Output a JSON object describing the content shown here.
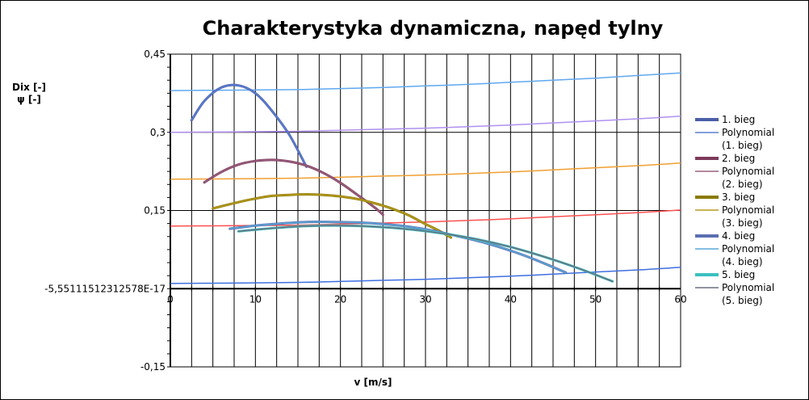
{
  "chart_data": {
    "type": "line",
    "title": "Charakterystyka dynamiczna, napęd tylny",
    "xlabel": "v [m/s]",
    "ylabel_lines": [
      "Dix [-]",
      "ψ [-]"
    ],
    "xlim": [
      0,
      60
    ],
    "ylim": [
      -0.15,
      0.45
    ],
    "x_ticks": [
      0,
      10,
      20,
      30,
      40,
      50,
      60
    ],
    "x_tick_labels": [
      "0",
      "10",
      "20",
      "30",
      "40",
      "50",
      "60"
    ],
    "y_ticks": [
      -0.15,
      0,
      0.15,
      0.3,
      0.45
    ],
    "y_tick_labels": [
      "-0,15",
      "-5,55111512312578E-17",
      "0,15",
      "0,3",
      "0,45"
    ],
    "grid": true,
    "legend_position": "right",
    "series": [
      {
        "name": "1. bieg",
        "color": "#4a5fa8",
        "width": 3,
        "x": [
          2.5,
          4,
          6,
          8,
          10,
          12,
          14,
          16
        ],
        "y": [
          0.323,
          0.36,
          0.386,
          0.39,
          0.375,
          0.34,
          0.295,
          0.234
        ]
      },
      {
        "name": "Polynomial (1. bieg)",
        "color": "#5b7fd6",
        "width": 1.5,
        "trend": true,
        "x": [
          2.5,
          4,
          6,
          8,
          10,
          12,
          14,
          16
        ],
        "y": [
          0.323,
          0.36,
          0.386,
          0.39,
          0.375,
          0.34,
          0.295,
          0.234
        ]
      },
      {
        "name": "2. bieg",
        "color": "#7e3a5a",
        "width": 3,
        "x": [
          4,
          6,
          8,
          10,
          12,
          14,
          16,
          18,
          20,
          22,
          24,
          25
        ],
        "y": [
          0.204,
          0.224,
          0.238,
          0.245,
          0.247,
          0.244,
          0.236,
          0.222,
          0.203,
          0.18,
          0.156,
          0.142
        ]
      },
      {
        "name": "Polynomial (2. bieg)",
        "color": "#9a6080",
        "width": 1.5,
        "trend": true,
        "x": [
          4,
          6,
          8,
          10,
          12,
          14,
          16,
          18,
          20,
          22,
          24,
          25
        ],
        "y": [
          0.204,
          0.224,
          0.238,
          0.245,
          0.247,
          0.244,
          0.236,
          0.222,
          0.203,
          0.18,
          0.156,
          0.142
        ]
      },
      {
        "name": "3. bieg",
        "color": "#8a7a00",
        "width": 3,
        "x": [
          5,
          8,
          10,
          12,
          14,
          16,
          18,
          20,
          22,
          24,
          26,
          28,
          30,
          31.5,
          33
        ],
        "y": [
          0.154,
          0.166,
          0.173,
          0.178,
          0.18,
          0.181,
          0.18,
          0.177,
          0.172,
          0.164,
          0.154,
          0.141,
          0.124,
          0.112,
          0.098
        ]
      },
      {
        "name": "Polynomial (3. bieg)",
        "color": "#b89a20",
        "width": 1.5,
        "trend": true,
        "x": [
          5,
          8,
          10,
          12,
          14,
          16,
          18,
          20,
          22,
          24,
          26,
          28,
          30,
          31.5,
          33
        ],
        "y": [
          0.154,
          0.166,
          0.173,
          0.178,
          0.18,
          0.181,
          0.18,
          0.177,
          0.172,
          0.164,
          0.154,
          0.141,
          0.124,
          0.112,
          0.098
        ]
      },
      {
        "name": "4. bieg",
        "color": "#5b6fb0",
        "width": 3,
        "x": [
          7,
          10,
          13,
          16,
          19,
          22,
          25,
          28,
          31,
          34,
          37,
          40,
          43,
          46.5
        ],
        "y": [
          0.115,
          0.121,
          0.125,
          0.128,
          0.128,
          0.127,
          0.124,
          0.119,
          0.111,
          0.1,
          0.088,
          0.073,
          0.055,
          0.031
        ]
      },
      {
        "name": "Polynomial (4. bieg)",
        "color": "#5aa8d8",
        "width": 1.5,
        "trend": true,
        "x": [
          7,
          10,
          13,
          16,
          19,
          22,
          25,
          28,
          31,
          34,
          37,
          40,
          43,
          46.5
        ],
        "y": [
          0.115,
          0.121,
          0.125,
          0.128,
          0.128,
          0.127,
          0.124,
          0.119,
          0.111,
          0.1,
          0.088,
          0.073,
          0.055,
          0.031
        ]
      },
      {
        "name": "5. bieg",
        "color": "#3cc0c0",
        "width": 3,
        "x": [
          8,
          12,
          16,
          20,
          24,
          28,
          32,
          36,
          40,
          44,
          48,
          52
        ],
        "y": [
          0.11,
          0.116,
          0.12,
          0.121,
          0.119,
          0.114,
          0.106,
          0.095,
          0.08,
          0.061,
          0.039,
          0.014
        ]
      },
      {
        "name": "Polynomial (5. bieg)",
        "color": "#6a6f80",
        "width": 1.5,
        "trend": true,
        "x": [
          8,
          12,
          16,
          20,
          24,
          28,
          32,
          36,
          40,
          44,
          48,
          52
        ],
        "y": [
          0.11,
          0.116,
          0.12,
          0.121,
          0.119,
          0.114,
          0.106,
          0.095,
          0.08,
          0.061,
          0.039,
          0.014
        ]
      }
    ],
    "resistance_lines": [
      {
        "color": "#3f6fe0",
        "x": [
          0,
          8,
          15,
          20,
          25,
          30,
          35,
          40,
          45,
          50,
          55,
          60
        ],
        "y": [
          0.01,
          0.011,
          0.012,
          0.014,
          0.016,
          0.018,
          0.021,
          0.024,
          0.028,
          0.032,
          0.036,
          0.041
        ]
      },
      {
        "color": "#ff5050",
        "x": [
          0,
          8,
          15,
          20,
          25,
          30,
          35,
          40,
          45,
          50,
          55,
          60
        ],
        "y": [
          0.12,
          0.121,
          0.122,
          0.124,
          0.126,
          0.128,
          0.131,
          0.134,
          0.138,
          0.142,
          0.146,
          0.151
        ]
      },
      {
        "color": "#f0a030",
        "x": [
          0,
          8,
          15,
          20,
          25,
          30,
          35,
          40,
          45,
          50,
          55,
          60
        ],
        "y": [
          0.21,
          0.211,
          0.212,
          0.214,
          0.216,
          0.218,
          0.221,
          0.224,
          0.228,
          0.232,
          0.236,
          0.241
        ]
      },
      {
        "color": "#b090f0",
        "x": [
          0,
          8,
          15,
          20,
          25,
          30,
          35,
          40,
          45,
          50,
          55,
          60
        ],
        "y": [
          0.3,
          0.301,
          0.302,
          0.304,
          0.306,
          0.308,
          0.311,
          0.314,
          0.318,
          0.322,
          0.326,
          0.331
        ]
      },
      {
        "color": "#60a8f0",
        "x": [
          0,
          8,
          15,
          20,
          25,
          30,
          35,
          40,
          45,
          50,
          55,
          60
        ],
        "y": [
          0.38,
          0.381,
          0.382,
          0.384,
          0.386,
          0.389,
          0.392,
          0.396,
          0.4,
          0.404,
          0.409,
          0.414
        ]
      }
    ],
    "legend_lines": [
      {
        "lines": [
          "1. bieg"
        ],
        "series": 0
      },
      {
        "lines": [
          "Polynomial",
          "(1. bieg)"
        ],
        "series": 1
      },
      {
        "lines": [
          "2. bieg"
        ],
        "series": 2
      },
      {
        "lines": [
          "Polynomial",
          "(2. bieg)"
        ],
        "series": 3
      },
      {
        "lines": [
          "3. bieg"
        ],
        "series": 4
      },
      {
        "lines": [
          "Polynomial",
          "(3. bieg)"
        ],
        "series": 5
      },
      {
        "lines": [
          "4. bieg"
        ],
        "series": 6
      },
      {
        "lines": [
          "Polynomial",
          "(4. bieg)"
        ],
        "series": 7
      },
      {
        "lines": [
          "5. bieg"
        ],
        "series": 8
      },
      {
        "lines": [
          "Polynomial",
          "(5. bieg)"
        ],
        "series": 9
      }
    ]
  }
}
